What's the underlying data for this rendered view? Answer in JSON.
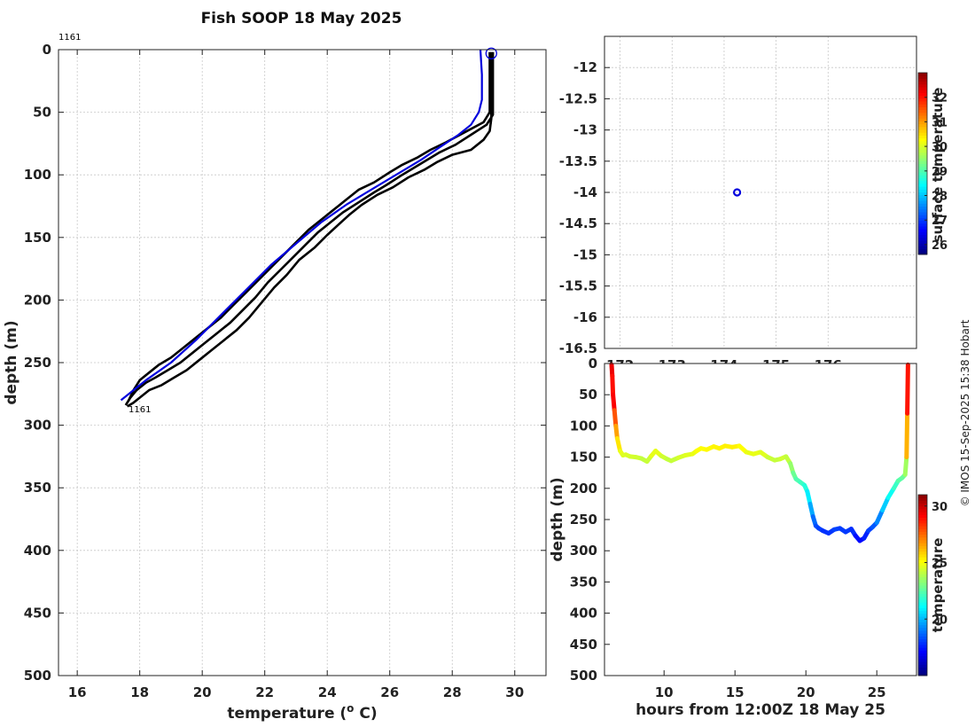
{
  "chart_data": [
    {
      "type": "line",
      "panel": "temperature-depth-profile",
      "title": "Fish SOOP 18 May 2025",
      "xlabel": "temperature (",
      "xlabel_sup": "o",
      "xlabel_tail": " C)",
      "ylabel": "depth (m)",
      "xlim": [
        15.4,
        31
      ],
      "ylim": [
        0,
        500
      ],
      "y_inverted": true,
      "grid": true,
      "x_ticks": [
        16,
        18,
        20,
        22,
        24,
        26,
        28,
        30
      ],
      "x_tick_labels": [
        "16",
        "18",
        "20",
        "22",
        "24",
        "26",
        "28",
        "30"
      ],
      "y_ticks": [
        0,
        50,
        100,
        150,
        200,
        250,
        300,
        350,
        400,
        450,
        500
      ],
      "y_tick_labels": [
        "0",
        "50",
        "100",
        "150",
        "200",
        "250",
        "300",
        "350",
        "400",
        "450",
        "500"
      ],
      "annotations": [
        {
          "text": "1161",
          "x": 15.4,
          "y": -10
        },
        {
          "text": "1161",
          "x": 17.6,
          "y": 287
        }
      ],
      "series": [
        {
          "name": "profile-1",
          "color": "#000000",
          "temperature": [
            29.25,
            29.25,
            29.25,
            29.2,
            29.0,
            28.6,
            28.0,
            27.5,
            27.1,
            26.6,
            26.1,
            25.6,
            25.1,
            24.7,
            24.35,
            24.0,
            23.6,
            23.1,
            22.7,
            22.3,
            21.9,
            21.5,
            21.1,
            20.7,
            20.3,
            19.9,
            19.5,
            19.1,
            18.7,
            18.3,
            18.0,
            17.8,
            17.6
          ],
          "depth": [
            2,
            30,
            55,
            65,
            72,
            80,
            84,
            90,
            96,
            102,
            110,
            116,
            124,
            132,
            140,
            148,
            158,
            168,
            180,
            190,
            202,
            214,
            224,
            232,
            240,
            248,
            256,
            262,
            268,
            272,
            278,
            282,
            285
          ]
        },
        {
          "name": "profile-2",
          "color": "#000000",
          "temperature": [
            29.3,
            29.3,
            29.3,
            29.1,
            28.6,
            28.1,
            27.6,
            27.2,
            26.8,
            26.4,
            25.9,
            25.5,
            25.0,
            24.5,
            24.1,
            23.7,
            23.3,
            22.9,
            22.5,
            22.1,
            21.7,
            21.3,
            20.9,
            20.5,
            20.1,
            19.7,
            19.3,
            18.9,
            18.5,
            18.2,
            17.9,
            17.7,
            17.55
          ],
          "depth": [
            2,
            30,
            52,
            60,
            68,
            76,
            82,
            88,
            94,
            100,
            108,
            114,
            122,
            130,
            138,
            146,
            156,
            166,
            176,
            186,
            198,
            208,
            218,
            226,
            234,
            242,
            250,
            256,
            262,
            266,
            272,
            278,
            284
          ]
        },
        {
          "name": "profile-3",
          "color": "#000000",
          "temperature": [
            29.2,
            29.2,
            29.2,
            29.0,
            28.4,
            27.8,
            27.3,
            26.9,
            26.4,
            26.0,
            25.5,
            25.0,
            24.6,
            24.2,
            23.8,
            23.4,
            23.0,
            22.6,
            22.2,
            21.8,
            21.4,
            21.0,
            20.6,
            20.2,
            19.8,
            19.4,
            19.0,
            18.6,
            18.3,
            18.0,
            17.8,
            17.65
          ],
          "depth": [
            2,
            30,
            50,
            58,
            66,
            74,
            80,
            86,
            92,
            98,
            106,
            112,
            120,
            128,
            136,
            144,
            154,
            164,
            174,
            184,
            194,
            204,
            214,
            222,
            230,
            238,
            246,
            252,
            258,
            264,
            272,
            280
          ]
        },
        {
          "name": "climatology",
          "color": "#0000dd",
          "temperature": [
            28.9,
            28.95,
            28.95,
            28.85,
            28.6,
            28.2,
            27.6,
            27.0,
            26.2,
            25.4,
            24.6,
            23.8,
            23.0,
            22.2,
            21.4,
            20.6,
            19.8,
            19.0,
            18.2,
            17.4
          ],
          "depth": [
            0,
            20,
            40,
            50,
            60,
            68,
            78,
            88,
            100,
            112,
            124,
            138,
            155,
            172,
            192,
            212,
            232,
            250,
            264,
            280
          ]
        }
      ],
      "marker": {
        "temperature": 29.25,
        "depth": 3,
        "color": "#0000dd"
      }
    },
    {
      "type": "scatter",
      "panel": "location-map",
      "ylim": [
        -16.5,
        -11.5
      ],
      "xlim": [
        171.7,
        177.7
      ],
      "grid": true,
      "y_ticks": [
        -12,
        -12.5,
        -13,
        -13.5,
        -14,
        -14.5,
        -15,
        -15.5,
        -16,
        -16.5
      ],
      "y_tick_labels": [
        "-12",
        "-12.5",
        "-13",
        "-13.5",
        "-14",
        "-14.5",
        "-15",
        "-15.5",
        "-16",
        "-16.5"
      ],
      "x_ticks": [
        172,
        173,
        174,
        175,
        176
      ],
      "x_tick_labels": [
        "172",
        "173",
        "174",
        "175",
        "176"
      ],
      "points": [
        {
          "lon": 174.25,
          "lat": -14.0,
          "color": "#0000dd"
        }
      ],
      "colorbar": {
        "label": "surface temperature",
        "range": [
          25.6,
          33
        ],
        "ticks": [
          26,
          27,
          28,
          29,
          30,
          31,
          32
        ],
        "tick_labels": [
          "26",
          "27",
          "28",
          "29",
          "30",
          "31",
          "32"
        ]
      }
    },
    {
      "type": "scatter",
      "panel": "depth-vs-time",
      "xlabel": "hours from 12:00Z 18 May 25",
      "ylabel": "depth (m)",
      "xlim": [
        5.8,
        27.8
      ],
      "ylim": [
        0,
        500
      ],
      "y_inverted": true,
      "x_ticks": [
        10,
        15,
        20,
        25
      ],
      "x_tick_labels": [
        "10",
        "15",
        "20",
        "25"
      ],
      "y_ticks": [
        0,
        50,
        100,
        150,
        200,
        250,
        300,
        350,
        400,
        450,
        500
      ],
      "y_tick_labels": [
        "0",
        "50",
        "100",
        "150",
        "200",
        "250",
        "300",
        "350",
        "400",
        "450",
        "500"
      ],
      "hours": [
        6.3,
        6.35,
        6.4,
        6.5,
        6.6,
        6.7,
        6.9,
        7.1,
        7.3,
        7.6,
        8.0,
        8.4,
        8.8,
        9.1,
        9.4,
        9.8,
        10.2,
        10.5,
        11.0,
        11.5,
        12.0,
        12.3,
        12.6,
        13.0,
        13.5,
        13.9,
        14.3,
        14.8,
        15.3,
        15.8,
        16.3,
        16.8,
        17.3,
        17.8,
        18.2,
        18.6,
        18.9,
        19.1,
        19.3,
        19.6,
        19.9,
        20.1,
        20.3,
        20.5,
        20.7,
        20.9,
        21.2,
        21.6,
        22.0,
        22.4,
        22.8,
        23.2,
        23.5,
        23.8,
        24.1,
        24.4,
        24.7,
        25.0,
        25.4,
        25.8,
        26.2,
        26.5,
        26.8,
        27.0,
        27.1,
        27.15,
        27.2
      ],
      "depth": [
        2,
        20,
        50,
        75,
        100,
        120,
        140,
        147,
        146,
        149,
        150,
        152,
        157,
        148,
        140,
        148,
        153,
        156,
        151,
        147,
        145,
        140,
        136,
        138,
        133,
        136,
        132,
        134,
        132,
        142,
        145,
        142,
        150,
        155,
        153,
        149,
        160,
        175,
        185,
        190,
        195,
        205,
        225,
        245,
        260,
        264,
        268,
        272,
        266,
        264,
        270,
        265,
        276,
        284,
        280,
        268,
        262,
        255,
        235,
        215,
        200,
        188,
        183,
        178,
        150,
        80,
        2
      ],
      "colorbar": {
        "label": "temperature",
        "range": [
          15,
          31
        ],
        "ticks": [
          20,
          25,
          30
        ],
        "tick_labels": [
          "20",
          "25",
          "30"
        ]
      }
    }
  ],
  "credit": "© IMOS 15-Sep-2025 15:38 Hobart"
}
